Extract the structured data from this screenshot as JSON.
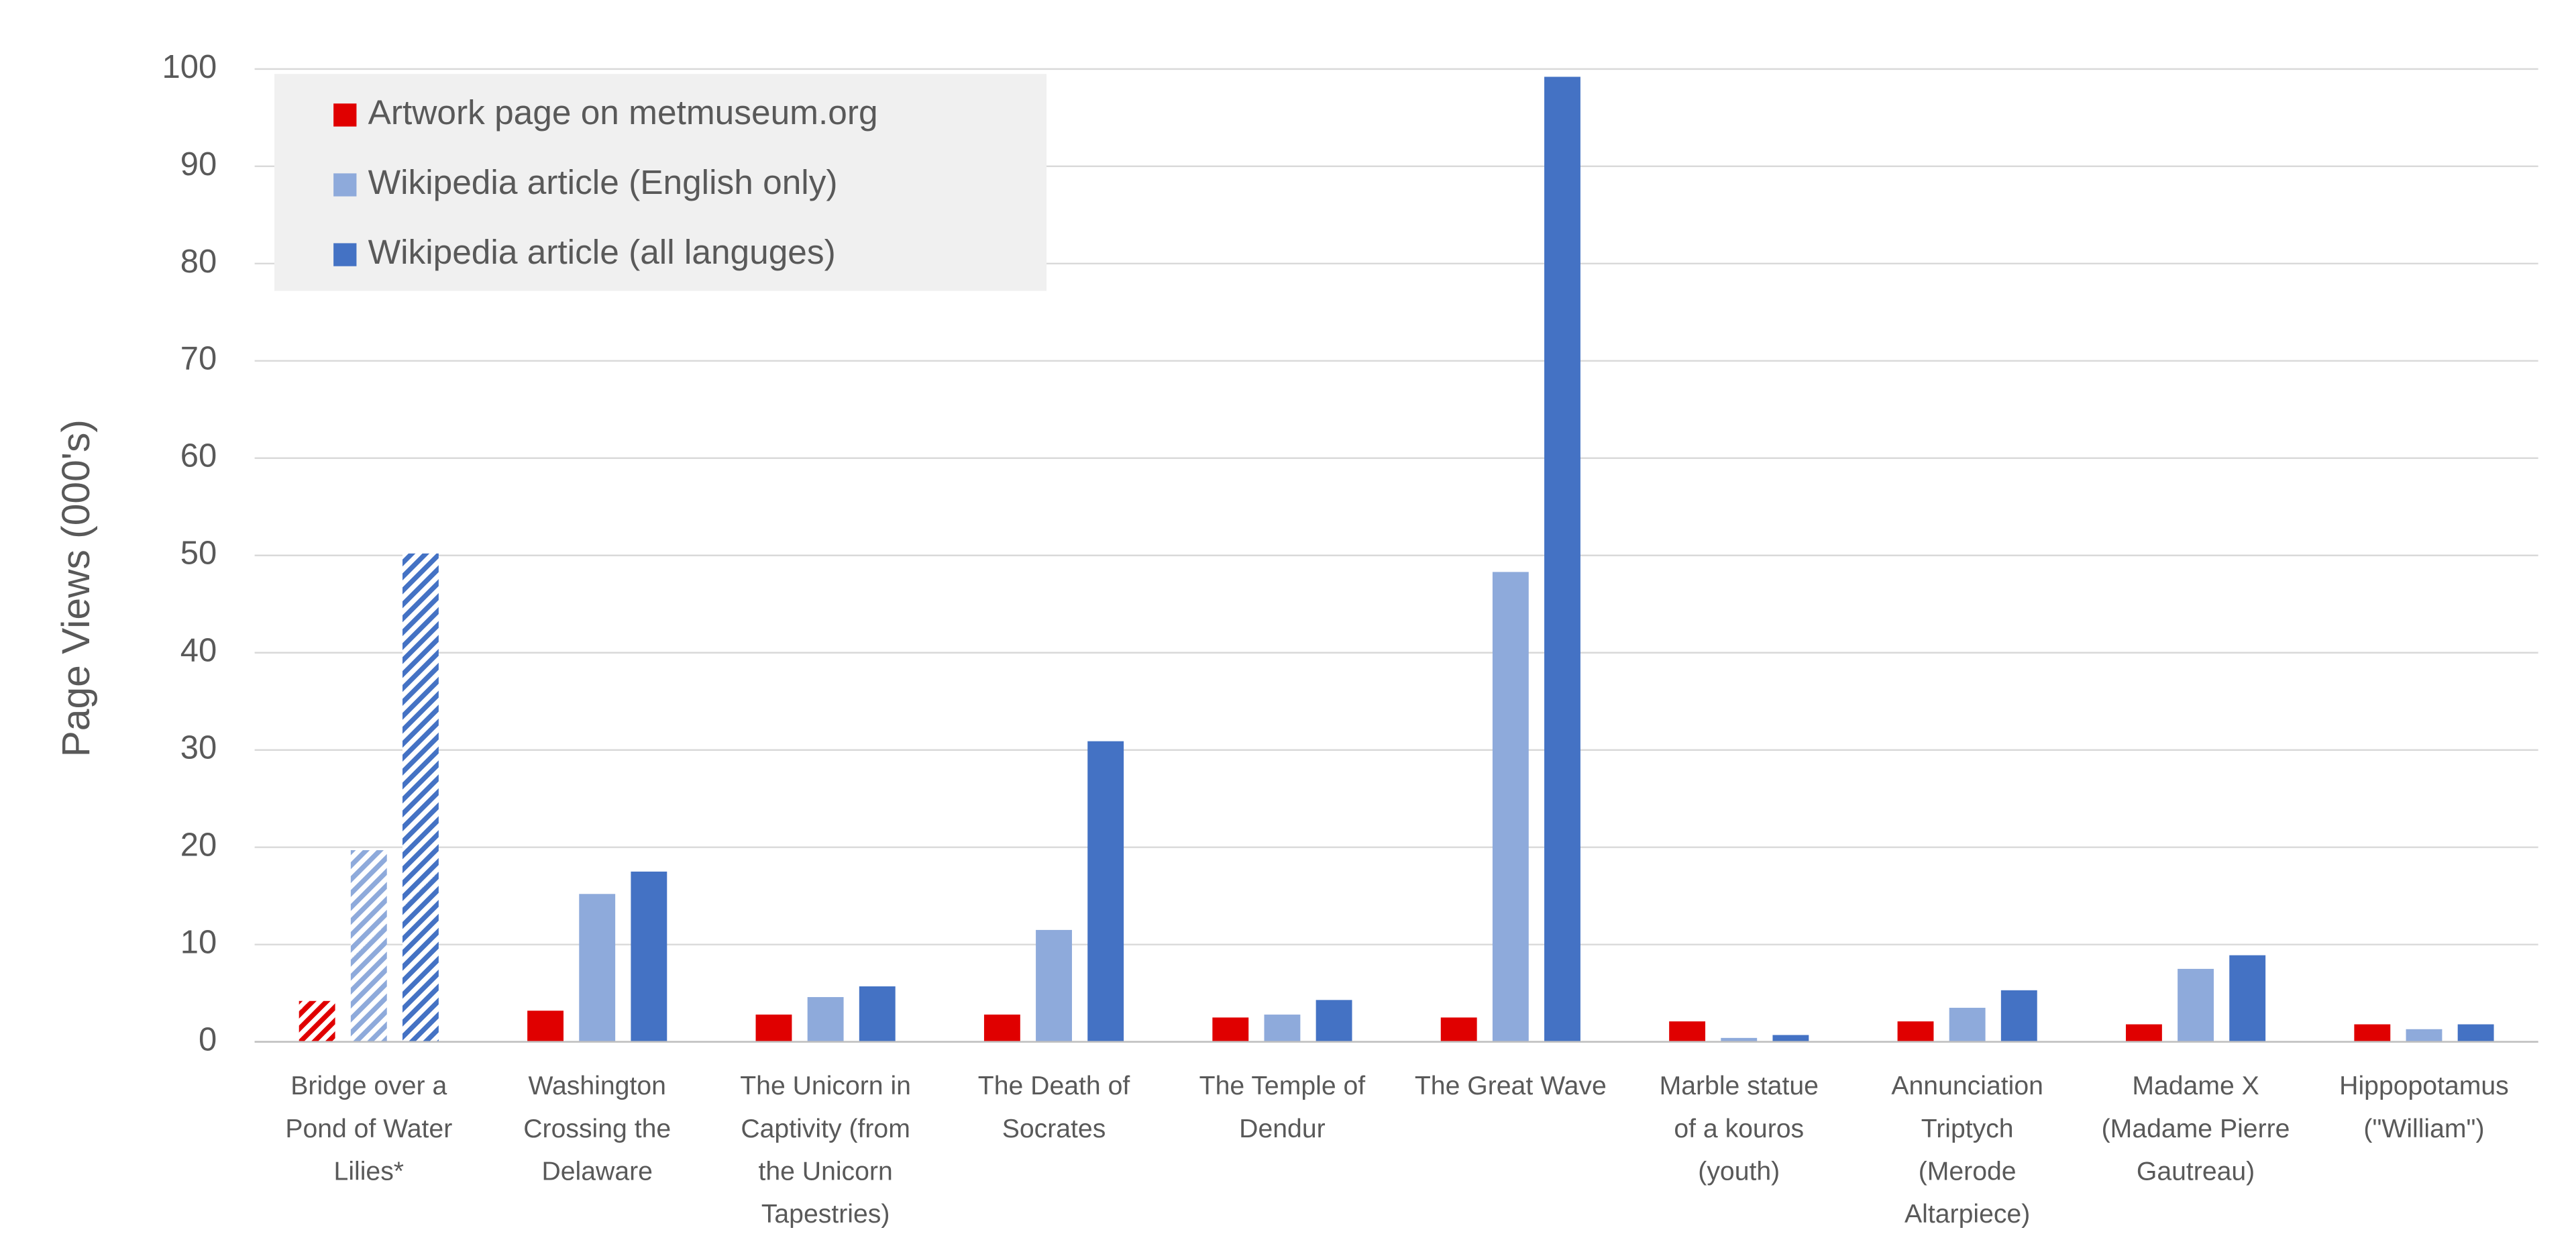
{
  "chart_data": {
    "type": "bar",
    "y_label": "Page Views (000's)",
    "categories": [
      "Bridge over a Pond of Water Lilies*",
      "Washington Crossing the Delaware",
      "The Unicorn in Captivity (from the Unicorn Tapestries)",
      "The Death of Socrates",
      "The Temple of Dendur",
      "The Great Wave",
      "Marble statue of a kouros (youth)",
      "Annunciation Triptych (Merode Altarpiece)",
      "Madame X (Madame Pierre Gautreau)",
      "Hippopotamus (\"William\")"
    ],
    "series": [
      {
        "name": "Artwork page on metmuseum.org",
        "color": "#e00000",
        "values": [
          4.2,
          3.2,
          2.8,
          2.8,
          2.5,
          2.5,
          2.1,
          2.1,
          1.8,
          1.8
        ]
      },
      {
        "name": "Wikipedia article (English only)",
        "color": "#8eaadb",
        "values": [
          19.7,
          15.2,
          4.6,
          11.5,
          2.8,
          48.3,
          0.4,
          3.5,
          7.5,
          1.3
        ]
      },
      {
        "name": "Wikipedia article (all languges)",
        "color": "#4472c4",
        "values": [
          50.2,
          17.5,
          5.7,
          30.9,
          4.3,
          99.2,
          0.7,
          5.3,
          8.9,
          1.8
        ]
      }
    ],
    "hatched_index": 0,
    "ylim": [
      0,
      100
    ],
    "yticks": [
      0,
      10,
      20,
      30,
      40,
      50,
      60,
      70,
      80,
      90,
      100
    ],
    "grid": true,
    "legend": "top-left"
  }
}
